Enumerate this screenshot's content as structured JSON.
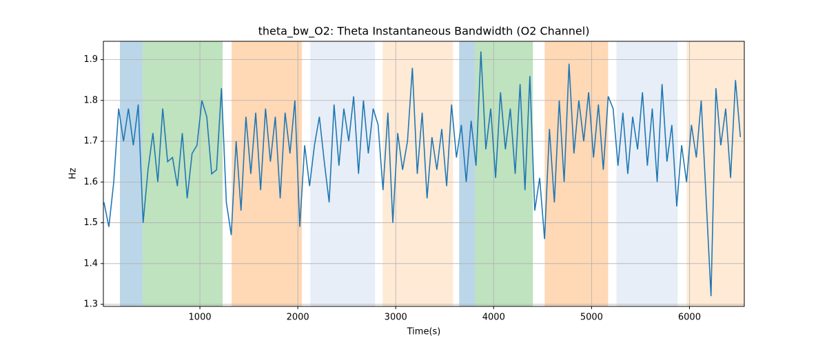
{
  "chart_data": {
    "type": "line",
    "title": "theta_bw_O2: Theta Instantaneous Bandwidth (O2 Channel)",
    "x_label": "Time(s)",
    "y_label": "Hz",
    "xlim": [
      14,
      6560
    ],
    "ylim": [
      1.295,
      1.945
    ],
    "xticks": [
      1000,
      2000,
      3000,
      4000,
      5000,
      6000
    ],
    "yticks": [
      1.3,
      1.4,
      1.5,
      1.6,
      1.7,
      1.8,
      1.9
    ],
    "grid": true,
    "spans": [
      {
        "start": 183,
        "end": 415,
        "color": "#1f77b4",
        "alpha": 0.3
      },
      {
        "start": 415,
        "end": 1232,
        "color": "#2ca02c",
        "alpha": 0.3
      },
      {
        "start": 1324,
        "end": 2042,
        "color": "#ff7f0e",
        "alpha": 0.3
      },
      {
        "start": 2127,
        "end": 2789,
        "color": "#aec7e8",
        "alpha": 0.3
      },
      {
        "start": 2866,
        "end": 3585,
        "color": "#ffbb78",
        "alpha": 0.3
      },
      {
        "start": 3648,
        "end": 3810,
        "color": "#1f77b4",
        "alpha": 0.3
      },
      {
        "start": 3810,
        "end": 4401,
        "color": "#2ca02c",
        "alpha": 0.3
      },
      {
        "start": 4521,
        "end": 5169,
        "color": "#ff7f0e",
        "alpha": 0.3
      },
      {
        "start": 5254,
        "end": 5880,
        "color": "#aec7e8",
        "alpha": 0.3
      },
      {
        "start": 5972,
        "end": 6560,
        "color": "#ffbb78",
        "alpha": 0.3
      }
    ],
    "x": [
      20,
      70,
      120,
      170,
      220,
      270,
      320,
      370,
      420,
      470,
      520,
      570,
      620,
      670,
      720,
      770,
      820,
      870,
      920,
      970,
      1020,
      1070,
      1120,
      1170,
      1220,
      1270,
      1320,
      1370,
      1420,
      1470,
      1520,
      1570,
      1620,
      1670,
      1720,
      1770,
      1820,
      1870,
      1920,
      1970,
      2020,
      2070,
      2120,
      2170,
      2220,
      2270,
      2320,
      2370,
      2420,
      2470,
      2520,
      2570,
      2620,
      2670,
      2720,
      2770,
      2820,
      2870,
      2920,
      2970,
      3020,
      3070,
      3120,
      3170,
      3220,
      3270,
      3320,
      3370,
      3420,
      3470,
      3520,
      3570,
      3620,
      3670,
      3720,
      3770,
      3820,
      3870,
      3920,
      3970,
      4020,
      4070,
      4120,
      4170,
      4220,
      4270,
      4320,
      4370,
      4420,
      4470,
      4520,
      4570,
      4620,
      4670,
      4720,
      4770,
      4820,
      4870,
      4920,
      4970,
      5020,
      5070,
      5120,
      5170,
      5220,
      5270,
      5320,
      5370,
      5420,
      5470,
      5520,
      5570,
      5620,
      5670,
      5720,
      5770,
      5820,
      5870,
      5920,
      5970,
      6020,
      6070,
      6120,
      6170,
      6220,
      6270,
      6320,
      6370,
      6420,
      6470,
      6520
    ],
    "series": [
      {
        "color": "#1f77b4",
        "values": [
          1.55,
          1.49,
          1.6,
          1.78,
          1.7,
          1.78,
          1.69,
          1.79,
          1.5,
          1.63,
          1.72,
          1.6,
          1.78,
          1.65,
          1.66,
          1.59,
          1.72,
          1.56,
          1.67,
          1.69,
          1.8,
          1.76,
          1.62,
          1.63,
          1.83,
          1.55,
          1.47,
          1.7,
          1.53,
          1.76,
          1.62,
          1.77,
          1.58,
          1.78,
          1.65,
          1.76,
          1.56,
          1.77,
          1.67,
          1.8,
          1.49,
          1.69,
          1.59,
          1.69,
          1.76,
          1.65,
          1.55,
          1.79,
          1.64,
          1.78,
          1.7,
          1.81,
          1.62,
          1.8,
          1.67,
          1.78,
          1.74,
          1.58,
          1.77,
          1.5,
          1.72,
          1.63,
          1.7,
          1.88,
          1.62,
          1.77,
          1.56,
          1.71,
          1.63,
          1.73,
          1.59,
          1.79,
          1.66,
          1.74,
          1.6,
          1.75,
          1.64,
          1.92,
          1.68,
          1.78,
          1.61,
          1.82,
          1.68,
          1.78,
          1.62,
          1.84,
          1.58,
          1.86,
          1.53,
          1.61,
          1.46,
          1.73,
          1.55,
          1.8,
          1.6,
          1.89,
          1.67,
          1.8,
          1.7,
          1.82,
          1.66,
          1.79,
          1.63,
          1.81,
          1.78,
          1.64,
          1.77,
          1.62,
          1.76,
          1.68,
          1.82,
          1.64,
          1.78,
          1.6,
          1.84,
          1.65,
          1.74,
          1.54,
          1.69,
          1.6,
          1.74,
          1.66,
          1.8,
          1.56,
          1.32,
          1.83,
          1.69,
          1.78,
          1.61,
          1.85,
          1.71
        ]
      }
    ]
  }
}
